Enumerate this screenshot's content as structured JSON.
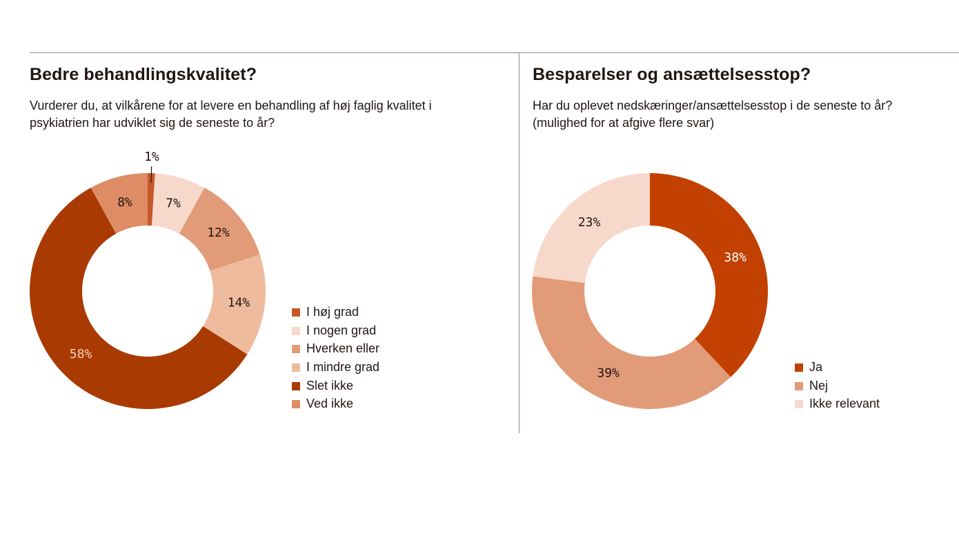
{
  "panels": [
    {
      "title": "Bedre behandlingskvalitet?",
      "subtitle_lines": [
        "Vurderer du, at vilkårene for at levere en behandling af høj faglig kvalitet i",
        "psykiatrien har udviklet sig de seneste to år?"
      ]
    },
    {
      "title": "Besparelser og ansættelsesstop?",
      "subtitle_lines": [
        "Har du oplevet nedskæringer/ansættelsesstop i de seneste to år?",
        "(mulighed for at afgive flere svar)"
      ]
    }
  ],
  "chart_data": [
    {
      "type": "pie",
      "donut": true,
      "title": "Bedre behandlingskvalitet?",
      "categories": [
        "I høj grad",
        "I nogen grad",
        "Hverken eller",
        "I mindre grad",
        "Slet ikke",
        "Ved ikke"
      ],
      "values": [
        1,
        7,
        12,
        14,
        58,
        8
      ],
      "value_labels": [
        "1%",
        "7%",
        "12%",
        "14%",
        "58%",
        "8%"
      ],
      "colors": [
        "#c7582a",
        "#f7d9cb",
        "#e29b78",
        "#efbb9e",
        "#a83a02",
        "#de8c66"
      ],
      "label_colors": [
        "#1f1512",
        "#1f1512",
        "#1f1512",
        "#1f1512",
        "#f3d2c1",
        "#1f1512"
      ],
      "legend_position": "right"
    },
    {
      "type": "pie",
      "donut": true,
      "title": "Besparelser og ansættelsesstop?",
      "categories": [
        "Ja",
        "Nej",
        "Ikke relevant"
      ],
      "values": [
        38,
        39,
        23
      ],
      "value_labels": [
        "38%",
        "39%",
        "23%"
      ],
      "colors": [
        "#c24000",
        "#e29b78",
        "#f7d9cb"
      ],
      "label_colors": [
        "#ffffff",
        "#1f1512",
        "#1f1512"
      ],
      "legend_position": "right"
    }
  ]
}
